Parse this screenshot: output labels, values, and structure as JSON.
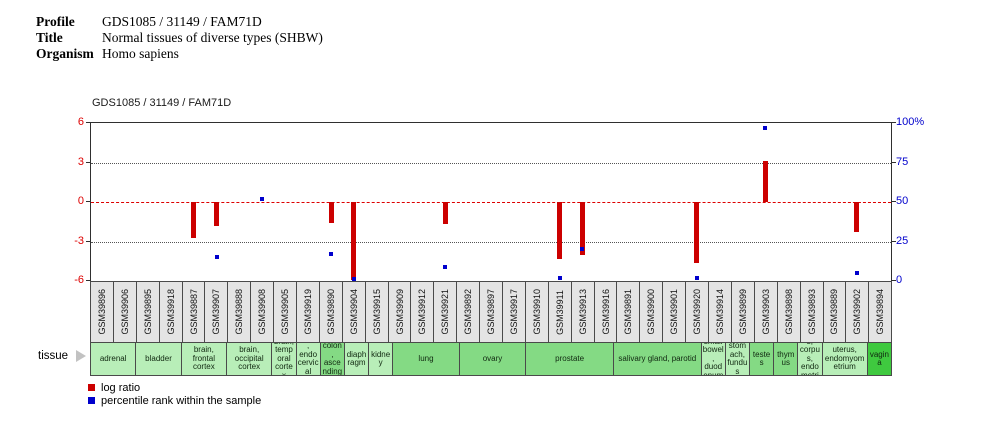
{
  "header": {
    "profile_label": "Profile",
    "profile_value": "GDS1085 / 31149 / FAM71D",
    "title_label": "Title",
    "title_value": "Normal tissues of diverse types (SHBW)",
    "organism_label": "Organism",
    "organism_value": "Homo sapiens"
  },
  "chart_data": {
    "type": "bar",
    "title": "GDS1085 / 31149 / FAM71D",
    "tissue_row_label": "tissue",
    "left_axis": {
      "min": -6,
      "max": 6,
      "color": "#dd0000",
      "ticks": [
        6,
        3,
        0,
        -3,
        -6
      ]
    },
    "right_axis": {
      "min": 0,
      "max": 100,
      "color": "#0000cc",
      "ticks": [
        "100%",
        "75",
        "50",
        "25",
        "0"
      ]
    },
    "gridlines": [
      {
        "value": 3,
        "style": "dotted",
        "color": "#555555"
      },
      {
        "value": 0,
        "style": "dashed",
        "color": "#dd0000"
      },
      {
        "value": -3,
        "style": "dotted",
        "color": "#555555"
      }
    ],
    "series": [
      {
        "name": "log ratio",
        "color": "#cc0000"
      },
      {
        "name": "percentile rank within the sample",
        "color": "#0000cc"
      }
    ],
    "samples": [
      {
        "id": "GSM39896",
        "log_ratio": null,
        "percentile": null
      },
      {
        "id": "GSM39906",
        "log_ratio": null,
        "percentile": null
      },
      {
        "id": "GSM39895",
        "log_ratio": null,
        "percentile": null
      },
      {
        "id": "GSM39918",
        "log_ratio": null,
        "percentile": null
      },
      {
        "id": "GSM39887",
        "log_ratio": -2.7,
        "percentile": null
      },
      {
        "id": "GSM39907",
        "log_ratio": -1.8,
        "percentile": 15
      },
      {
        "id": "GSM39888",
        "log_ratio": null,
        "percentile": null
      },
      {
        "id": "GSM39908",
        "log_ratio": null,
        "percentile": 52
      },
      {
        "id": "GSM39905",
        "log_ratio": null,
        "percentile": null
      },
      {
        "id": "GSM39919",
        "log_ratio": null,
        "percentile": null
      },
      {
        "id": "GSM39890",
        "log_ratio": -1.6,
        "percentile": 17
      },
      {
        "id": "GSM39904",
        "log_ratio": -5.9,
        "percentile": 1
      },
      {
        "id": "GSM39915",
        "log_ratio": null,
        "percentile": null
      },
      {
        "id": "GSM39909",
        "log_ratio": null,
        "percentile": null
      },
      {
        "id": "GSM39912",
        "log_ratio": null,
        "percentile": null
      },
      {
        "id": "GSM39921",
        "log_ratio": -1.7,
        "percentile": 9
      },
      {
        "id": "GSM39892",
        "log_ratio": null,
        "percentile": null
      },
      {
        "id": "GSM39897",
        "log_ratio": null,
        "percentile": null
      },
      {
        "id": "GSM39917",
        "log_ratio": null,
        "percentile": null
      },
      {
        "id": "GSM39910",
        "log_ratio": null,
        "percentile": null
      },
      {
        "id": "GSM39911",
        "log_ratio": -4.3,
        "percentile": 2
      },
      {
        "id": "GSM39913",
        "log_ratio": -4.0,
        "percentile": 20
      },
      {
        "id": "GSM39916",
        "log_ratio": null,
        "percentile": null
      },
      {
        "id": "GSM39891",
        "log_ratio": null,
        "percentile": null
      },
      {
        "id": "GSM39900",
        "log_ratio": null,
        "percentile": null
      },
      {
        "id": "GSM39901",
        "log_ratio": null,
        "percentile": null
      },
      {
        "id": "GSM39920",
        "log_ratio": -4.6,
        "percentile": 2
      },
      {
        "id": "GSM39914",
        "log_ratio": null,
        "percentile": null
      },
      {
        "id": "GSM39899",
        "log_ratio": null,
        "percentile": null
      },
      {
        "id": "GSM39903",
        "log_ratio": 3.1,
        "percentile": 97
      },
      {
        "id": "GSM39898",
        "log_ratio": null,
        "percentile": null
      },
      {
        "id": "GSM39893",
        "log_ratio": null,
        "percentile": null
      },
      {
        "id": "GSM39889",
        "log_ratio": null,
        "percentile": null
      },
      {
        "id": "GSM39902",
        "log_ratio": -2.3,
        "percentile": 5
      },
      {
        "id": "GSM39894",
        "log_ratio": null,
        "percentile": null
      }
    ],
    "tissue_shades": {
      "light": "#b8eeb8",
      "medium": "#84da84",
      "dark": "#3fc93f"
    },
    "tissue_groups": [
      {
        "label": "adrenal",
        "span": 2,
        "shade": "light"
      },
      {
        "label": "bladder",
        "span": 2,
        "shade": "light"
      },
      {
        "label": "brain, frontal cortex",
        "span": 2,
        "shade": "light"
      },
      {
        "label": "brain, occipital cortex",
        "span": 2,
        "shade": "light"
      },
      {
        "label": "brain, temporal cortex",
        "span": 1,
        "shade": "light"
      },
      {
        "label": "cervix, endocervical canal",
        "span": 1,
        "shade": "light"
      },
      {
        "label": "colon, ascending",
        "span": 1,
        "shade": "medium"
      },
      {
        "label": "diaphragm",
        "span": 1,
        "shade": "light"
      },
      {
        "label": "kidney",
        "span": 1,
        "shade": "light"
      },
      {
        "label": "lung",
        "span": 3,
        "shade": "medium"
      },
      {
        "label": "ovary",
        "span": 3,
        "shade": "medium"
      },
      {
        "label": "prostate",
        "span": 4,
        "shade": "medium"
      },
      {
        "label": "salivary gland, parotid",
        "span": 4,
        "shade": "medium"
      },
      {
        "label": "small bowel, duodenum",
        "span": 1,
        "shade": "light"
      },
      {
        "label": "stomach, fundus",
        "span": 1,
        "shade": "light"
      },
      {
        "label": "testes",
        "span": 1,
        "shade": "medium"
      },
      {
        "label": "thymus",
        "span": 1,
        "shade": "medium"
      },
      {
        "label": "uterus, corpus, endometrium",
        "span": 1,
        "shade": "light"
      },
      {
        "label": "uterus, endomyometrium",
        "span": 2,
        "shade": "light"
      },
      {
        "label": "vagina",
        "span": 1,
        "shade": "dark"
      }
    ]
  }
}
